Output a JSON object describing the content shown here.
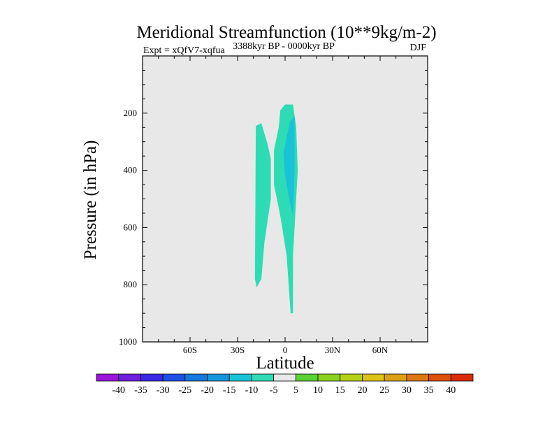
{
  "chart_data": {
    "type": "contour",
    "title": "Meridional Streamfunction (10**9kg/m-2)",
    "experiment_label": "Expt = xQfV7-xqfua",
    "period_label": "3388kyr BP - 0000kyr BP",
    "season_label": "DJF",
    "xlabel": "Latitude",
    "ylabel": "Pressure (in hPa)",
    "xlim": [
      -90,
      90
    ],
    "ylim": [
      1000,
      0
    ],
    "x_ticks": [
      {
        "value": -60,
        "label": "60S"
      },
      {
        "value": -30,
        "label": "30S"
      },
      {
        "value": 0,
        "label": "0"
      },
      {
        "value": 30,
        "label": "30N"
      },
      {
        "value": 60,
        "label": "60N"
      }
    ],
    "y_ticks": [
      {
        "value": 200,
        "label": "200"
      },
      {
        "value": 400,
        "label": "400"
      },
      {
        "value": 600,
        "label": "600"
      },
      {
        "value": 800,
        "label": "800"
      },
      {
        "value": 1000,
        "label": "1000"
      }
    ],
    "background_fill": "#e8e8e8",
    "regions": [
      {
        "name": "southern-cell-outer",
        "level": "-10 to -5",
        "color": "#2ddcb4",
        "points": [
          [
            -18.5,
            245
          ],
          [
            -15,
            235
          ],
          [
            -11,
            310
          ],
          [
            -9,
            360
          ],
          [
            -9,
            500
          ],
          [
            -13,
            650
          ],
          [
            -15,
            780
          ],
          [
            -18,
            810
          ],
          [
            -19,
            780
          ]
        ]
      },
      {
        "name": "equatorial-cell-outer",
        "level": "-10 to -5",
        "color": "#2ddcb4",
        "points": [
          [
            0,
            170
          ],
          [
            5,
            170
          ],
          [
            7,
            250
          ],
          [
            8,
            400
          ],
          [
            6.5,
            550
          ],
          [
            5,
            700
          ],
          [
            5,
            900
          ],
          [
            3.5,
            900
          ],
          [
            1,
            700
          ],
          [
            -3,
            560
          ],
          [
            -7,
            450
          ],
          [
            -7,
            330
          ],
          [
            -4,
            250
          ],
          [
            -3,
            190
          ]
        ]
      },
      {
        "name": "equatorial-cell-inner",
        "level": "-15 to -10",
        "color": "#19c3d7",
        "points": [
          [
            3,
            230
          ],
          [
            6,
            210
          ],
          [
            6,
            400
          ],
          [
            5,
            560
          ],
          [
            2.5,
            500
          ],
          [
            0,
            420
          ],
          [
            -1,
            340
          ]
        ]
      }
    ],
    "colorbar": {
      "boundaries": [
        "-40",
        "-35",
        "-30",
        "-25",
        "-20",
        "-15",
        "-10",
        "-5",
        "5",
        "10",
        "15",
        "20",
        "25",
        "30",
        "35",
        "40"
      ],
      "colors": [
        "#9b14dc",
        "#6e1edc",
        "#3c28e6",
        "#1e50e6",
        "#1478dc",
        "#1496dc",
        "#19c3d7",
        "#2ddcb4",
        "#e8e8e8",
        "#5ad232",
        "#8cd21e",
        "#b4d214",
        "#dcc314",
        "#dca014",
        "#dc780f",
        "#dc500a",
        "#dc2d0a"
      ]
    }
  }
}
